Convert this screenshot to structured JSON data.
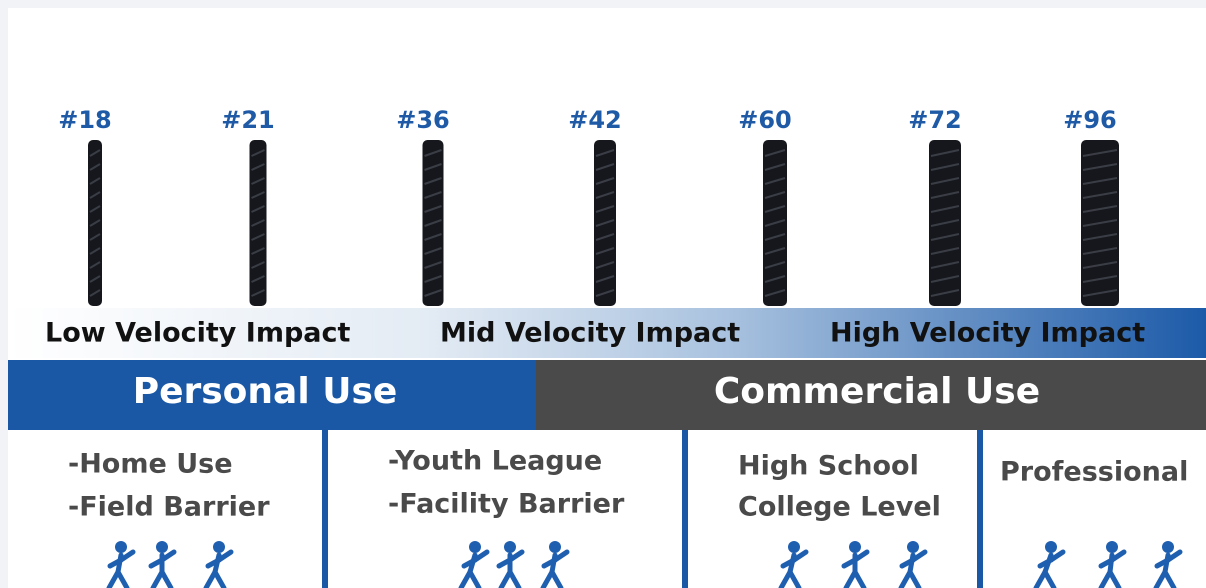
{
  "gauges": [
    "#18",
    "#21",
    "#36",
    "#42",
    "#60",
    "#72",
    "#96"
  ],
  "velocity_labels": [
    "Low Velocity Impact",
    "Mid Velocity Impact",
    "High Velocity Impact"
  ],
  "use_labels": [
    "Personal Use",
    "Commercial Use"
  ],
  "columns": [
    {
      "lines": [
        "-Home Use",
        "-Field Barrier"
      ]
    },
    {
      "lines": [
        "-Youth League",
        "-Facility Barrier"
      ]
    },
    {
      "lines": [
        "High School",
        "College Level"
      ]
    },
    {
      "lines": [
        "Professional"
      ]
    }
  ]
}
